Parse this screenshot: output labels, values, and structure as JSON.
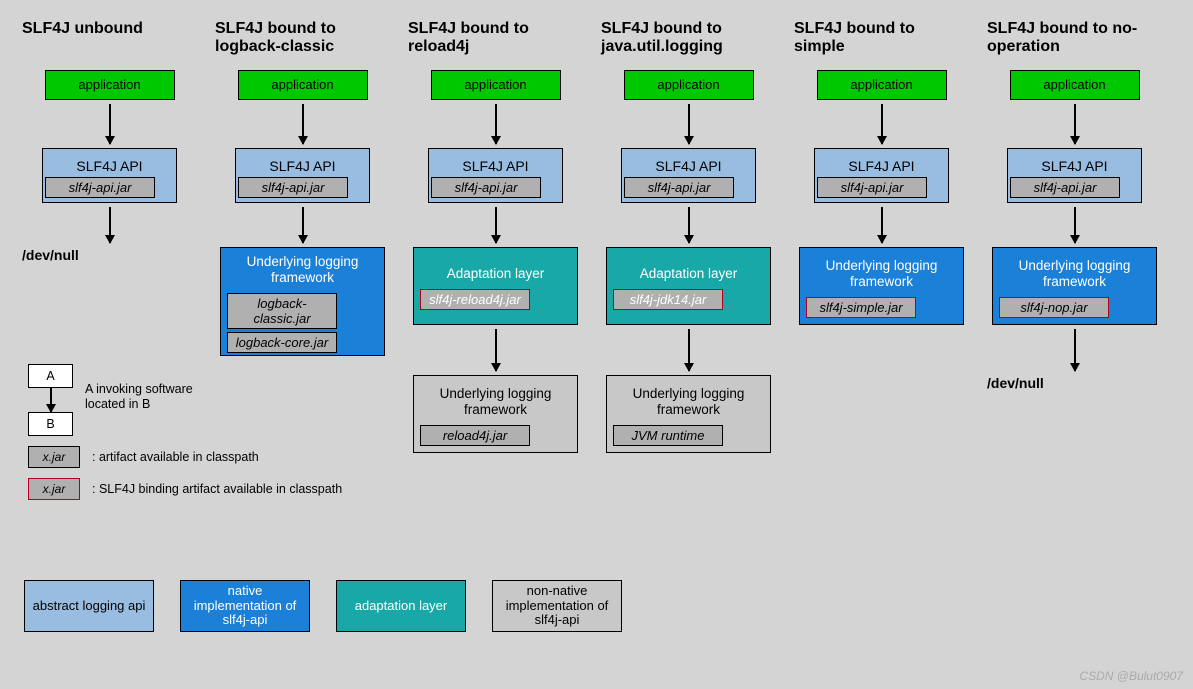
{
  "columns": [
    {
      "title": "SLF4J unbound",
      "app": "application",
      "api": "SLF4J API",
      "apijar": "slf4j-api.jar",
      "layers": [],
      "terminal": "/dev/null"
    },
    {
      "title": "SLF4J bound to logback-classic",
      "app": "application",
      "api": "SLF4J API",
      "apijar": "slf4j-api.jar",
      "layers": [
        {
          "type": "native",
          "title": "Underlying logging framework",
          "jars": [
            {
              "name": "logback-classic.jar",
              "red": false
            },
            {
              "name": "logback-core.jar",
              "red": false
            }
          ]
        }
      ],
      "terminal": null
    },
    {
      "title": "SLF4J bound to reload4j",
      "app": "application",
      "api": "SLF4J API",
      "apijar": "slf4j-api.jar",
      "layers": [
        {
          "type": "adapt",
          "title": "Adaptation layer",
          "jars": [
            {
              "name": "slf4j-reload4j.jar",
              "red": true
            }
          ]
        },
        {
          "type": "nonnative",
          "title": "Underlying logging framework",
          "jars": [
            {
              "name": "reload4j.jar",
              "red": false
            }
          ]
        }
      ],
      "terminal": null
    },
    {
      "title": "SLF4J bound to java.util.logging",
      "app": "application",
      "api": "SLF4J API",
      "apijar": "slf4j-api.jar",
      "layers": [
        {
          "type": "adapt",
          "title": "Adaptation layer",
          "jars": [
            {
              "name": "slf4j-jdk14.jar",
              "red": true
            }
          ]
        },
        {
          "type": "nonnative",
          "title": "Underlying logging framework",
          "jars": [
            {
              "name": "JVM runtime",
              "red": false
            }
          ]
        }
      ],
      "terminal": null
    },
    {
      "title": "SLF4J bound to simple",
      "app": "application",
      "api": "SLF4J API",
      "apijar": "slf4j-api.jar",
      "layers": [
        {
          "type": "native",
          "title": "Underlying logging framework",
          "jars": [
            {
              "name": "slf4j-simple.jar",
              "red": true
            }
          ]
        }
      ],
      "terminal": null
    },
    {
      "title": "SLF4J bound to no-operation",
      "app": "application",
      "api": "SLF4J API",
      "apijar": "slf4j-api.jar",
      "layers": [
        {
          "type": "native",
          "title": "Underlying logging framework",
          "jars": [
            {
              "name": "slf4j-nop.jar",
              "red": true
            }
          ]
        }
      ],
      "terminal": "/dev/null"
    }
  ],
  "legend": {
    "ab_a": "A",
    "ab_b": "B",
    "ab_text": "A invoking software located in B",
    "jar_plain": "x.jar",
    "jar_plain_text": ": artifact available in classpath",
    "jar_red": "x.jar",
    "jar_red_text": ": SLF4J binding artifact available in classpath",
    "colors": [
      {
        "cls": "c-abstract",
        "label": "abstract logging api"
      },
      {
        "cls": "c-native",
        "label": "native implementation of slf4j-api"
      },
      {
        "cls": "c-adapt",
        "label": "adaptation layer"
      },
      {
        "cls": "c-nonnative",
        "label": "non-native implementation of slf4j-api"
      }
    ]
  },
  "watermark": "CSDN @Bulut0907",
  "style": {
    "arrow_h1": 40,
    "arrow_h2": 36,
    "arrow_h3": 42,
    "colors": {
      "app": "#00c800",
      "api": "#98bde0",
      "native": "#1a80d8",
      "adapt": "#18a8a8",
      "nonnative": "#c8c8c8",
      "jar": "#b0b0b0",
      "bg": "#d4d4d4",
      "red_border": "#b00020"
    }
  }
}
